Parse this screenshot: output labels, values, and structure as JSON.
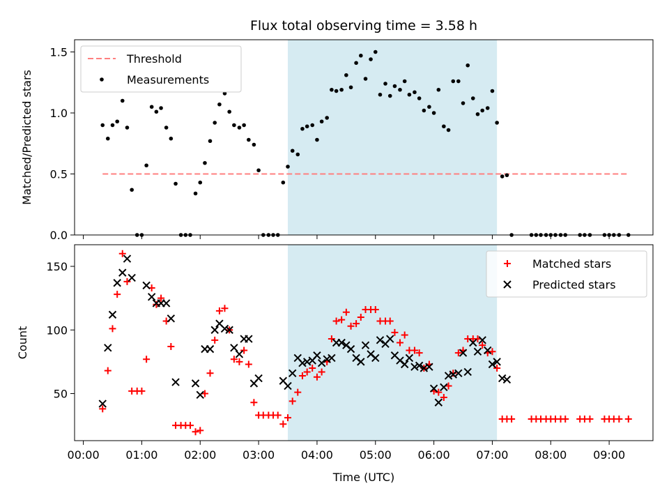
{
  "chart_data": {
    "title": "Flux total observing time = 3.58 h",
    "xlabel": "Time (UTC)",
    "x_unit": "hours UTC",
    "xlim": [
      -0.15,
      9.75
    ],
    "xticks": [
      {
        "value": 0,
        "label": "00:00"
      },
      {
        "value": 1,
        "label": "01:00"
      },
      {
        "value": 2,
        "label": "02:00"
      },
      {
        "value": 3,
        "label": "03:00"
      },
      {
        "value": 4,
        "label": "04:00"
      },
      {
        "value": 5,
        "label": "05:00"
      },
      {
        "value": 6,
        "label": "06:00"
      },
      {
        "value": 7,
        "label": "07:00"
      },
      {
        "value": 8,
        "label": "08:00"
      },
      {
        "value": 9,
        "label": "09:00"
      }
    ],
    "highlight": {
      "x_start": 3.5,
      "x_end": 7.08,
      "color": "#add8e6"
    },
    "panels": [
      {
        "type": "scatter",
        "ylabel": "Matched/Predicted stars",
        "ylim": [
          0.0,
          1.6
        ],
        "yticks": [
          {
            "value": 0.0,
            "label": "0.0"
          },
          {
            "value": 0.5,
            "label": "0.5"
          },
          {
            "value": 1.0,
            "label": "1.0"
          },
          {
            "value": 1.5,
            "label": "1.5"
          }
        ],
        "legend": {
          "position": "upper-left"
        },
        "lines": [
          {
            "name": "Threshold",
            "x": [
              0.33,
              9.33
            ],
            "y": [
              0.5,
              0.5
            ],
            "color": "#ff7f7f",
            "dash": true
          }
        ],
        "series": [
          {
            "name": "Measurements",
            "marker": "dot",
            "color": "#000000",
            "x": [
              0.33,
              0.42,
              0.5,
              0.58,
              0.67,
              0.75,
              0.83,
              0.92,
              1.0,
              1.08,
              1.17,
              1.25,
              1.33,
              1.42,
              1.5,
              1.58,
              1.67,
              1.75,
              1.83,
              1.92,
              2.0,
              2.08,
              2.17,
              2.25,
              2.33,
              2.42,
              2.5,
              2.58,
              2.67,
              2.75,
              2.83,
              2.92,
              3.0,
              3.08,
              3.17,
              3.25,
              3.33,
              3.42,
              3.5,
              3.58,
              3.67,
              3.75,
              3.83,
              3.92,
              4.0,
              4.08,
              4.17,
              4.25,
              4.33,
              4.42,
              4.5,
              4.58,
              4.67,
              4.75,
              4.83,
              4.92,
              5.0,
              5.08,
              5.17,
              5.25,
              5.33,
              5.42,
              5.5,
              5.58,
              5.67,
              5.75,
              5.83,
              5.92,
              6.0,
              6.08,
              6.17,
              6.25,
              6.33,
              6.42,
              6.5,
              6.58,
              6.67,
              6.75,
              6.83,
              6.92,
              7.0,
              7.08,
              7.17,
              7.25,
              7.33,
              7.67,
              7.75,
              7.83,
              7.92,
              8.0,
              8.08,
              8.17,
              8.25,
              8.5,
              8.58,
              8.67,
              8.92,
              9.0,
              9.08,
              9.17,
              9.33
            ],
            "y": [
              0.9,
              0.79,
              0.9,
              0.93,
              1.1,
              0.88,
              0.37,
              0.0,
              0.0,
              0.57,
              1.05,
              1.01,
              1.04,
              0.88,
              0.79,
              0.42,
              0.0,
              0.0,
              0.0,
              0.34,
              0.43,
              0.59,
              0.77,
              0.92,
              1.07,
              1.16,
              1.01,
              0.9,
              0.88,
              0.9,
              0.78,
              0.74,
              0.53,
              0.0,
              0.0,
              0.0,
              0.0,
              0.43,
              0.56,
              0.69,
              0.66,
              0.87,
              0.89,
              0.9,
              0.78,
              0.93,
              0.96,
              1.19,
              1.18,
              1.19,
              1.31,
              1.21,
              1.41,
              1.47,
              1.28,
              1.44,
              1.5,
              1.15,
              1.24,
              1.14,
              1.22,
              1.19,
              1.26,
              1.15,
              1.17,
              1.12,
              1.02,
              1.05,
              1.0,
              1.19,
              0.89,
              0.86,
              1.26,
              1.26,
              1.08,
              1.39,
              1.12,
              0.99,
              1.02,
              1.04,
              1.18,
              0.92,
              0.48,
              0.49,
              0.0,
              0.0,
              0.0,
              0.0,
              0.0,
              0.0,
              0.0,
              0.0,
              0.0,
              0.0,
              0.0,
              0.0,
              0.0,
              0.0,
              0.0,
              0.0,
              0.0
            ]
          }
        ]
      },
      {
        "type": "scatter",
        "ylabel": "Count",
        "ylim": [
          13,
          167
        ],
        "yticks": [
          {
            "value": 50,
            "label": "50"
          },
          {
            "value": 100,
            "label": "100"
          },
          {
            "value": 150,
            "label": "150"
          }
        ],
        "legend": {
          "position": "upper-right"
        },
        "series": [
          {
            "name": "Matched stars",
            "marker": "plus",
            "color": "#ff0000",
            "x": [
              0.33,
              0.42,
              0.5,
              0.58,
              0.67,
              0.75,
              0.83,
              0.92,
              1.0,
              1.08,
              1.17,
              1.25,
              1.33,
              1.42,
              1.5,
              1.58,
              1.67,
              1.75,
              1.83,
              1.92,
              2.0,
              2.08,
              2.17,
              2.25,
              2.33,
              2.42,
              2.5,
              2.58,
              2.67,
              2.75,
              2.83,
              2.92,
              3.0,
              3.08,
              3.17,
              3.25,
              3.33,
              3.42,
              3.5,
              3.58,
              3.67,
              3.75,
              3.83,
              3.92,
              4.0,
              4.08,
              4.17,
              4.25,
              4.33,
              4.42,
              4.5,
              4.58,
              4.67,
              4.75,
              4.83,
              4.92,
              5.0,
              5.08,
              5.17,
              5.25,
              5.33,
              5.42,
              5.5,
              5.58,
              5.67,
              5.75,
              5.83,
              5.92,
              6.0,
              6.08,
              6.17,
              6.25,
              6.33,
              6.42,
              6.5,
              6.58,
              6.67,
              6.75,
              6.83,
              6.92,
              7.0,
              7.08,
              7.17,
              7.25,
              7.33,
              7.67,
              7.75,
              7.83,
              7.92,
              8.0,
              8.08,
              8.17,
              8.25,
              8.5,
              8.58,
              8.67,
              8.92,
              9.0,
              9.08,
              9.17,
              9.33
            ],
            "y": [
              38,
              68,
              101,
              128,
              160,
              138,
              52,
              52,
              52,
              77,
              133,
              120,
              125,
              107,
              87,
              25,
              25,
              25,
              25,
              20,
              21,
              50,
              66,
              92,
              115,
              117,
              100,
              77,
              75,
              84,
              73,
              43,
              33,
              33,
              33,
              33,
              33,
              26,
              31,
              44,
              51,
              64,
              67,
              70,
              63,
              67,
              75,
              93,
              107,
              108,
              114,
              103,
              105,
              110,
              116,
              116,
              116,
              107,
              107,
              107,
              98,
              90,
              96,
              84,
              84,
              82,
              70,
              73,
              52,
              51,
              47,
              56,
              66,
              82,
              84,
              93,
              93,
              93,
              88,
              82,
              83,
              70,
              30,
              30,
              30,
              30,
              30,
              30,
              30,
              30,
              30,
              30,
              30,
              30,
              30,
              30,
              30,
              30,
              30,
              30,
              30
            ]
          },
          {
            "name": "Predicted stars",
            "marker": "x",
            "color": "#000000",
            "x": [
              0.33,
              0.42,
              0.5,
              0.58,
              0.67,
              0.75,
              0.83,
              1.08,
              1.17,
              1.25,
              1.33,
              1.42,
              1.5,
              1.58,
              1.92,
              2.0,
              2.08,
              2.17,
              2.25,
              2.33,
              2.42,
              2.5,
              2.58,
              2.67,
              2.75,
              2.83,
              2.92,
              3.0,
              3.42,
              3.5,
              3.58,
              3.67,
              3.75,
              3.83,
              3.92,
              4.0,
              4.08,
              4.17,
              4.25,
              4.33,
              4.42,
              4.5,
              4.58,
              4.67,
              4.75,
              4.83,
              4.92,
              5.0,
              5.08,
              5.17,
              5.25,
              5.33,
              5.42,
              5.5,
              5.58,
              5.67,
              5.75,
              5.83,
              5.92,
              6.0,
              6.08,
              6.17,
              6.25,
              6.33,
              6.42,
              6.5,
              6.58,
              6.67,
              6.75,
              6.83,
              6.92,
              7.0,
              7.08,
              7.17,
              7.25
            ],
            "y": [
              42,
              86,
              112,
              137,
              145,
              156,
              141,
              135,
              126,
              121,
              121,
              121,
              109,
              59,
              58,
              49,
              85,
              85,
              100,
              105,
              101,
              100,
              86,
              81,
              93,
              93,
              58,
              62,
              60,
              56,
              66,
              78,
              74,
              75,
              76,
              80,
              74,
              77,
              78,
              90,
              90,
              88,
              85,
              78,
              75,
              88,
              81,
              78,
              92,
              89,
              93,
              80,
              76,
              73,
              78,
              71,
              72,
              70,
              71,
              54,
              43,
              55,
              64,
              65,
              66,
              82,
              67,
              90,
              83,
              92,
              84,
              73,
              75,
              62,
              61
            ]
          }
        ]
      }
    ]
  }
}
